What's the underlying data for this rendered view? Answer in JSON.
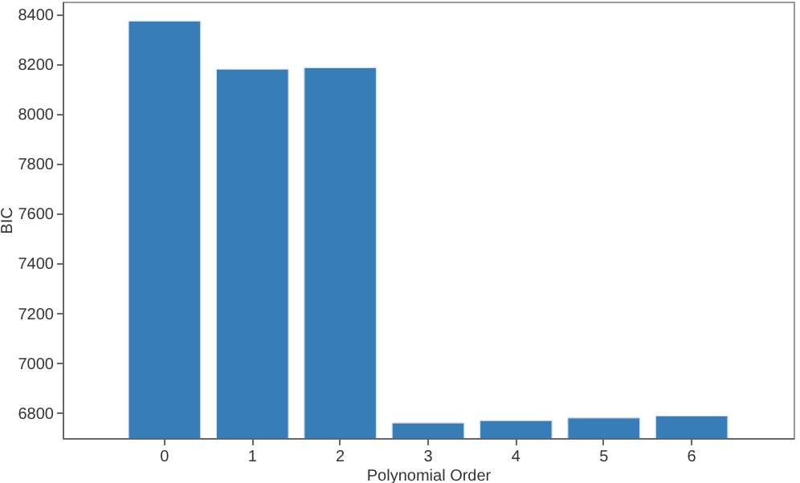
{
  "chart_data": {
    "type": "bar",
    "xlabel": "Polynomial Order",
    "ylabel": "BIC",
    "categories": [
      "0",
      "1",
      "2",
      "3",
      "4",
      "5",
      "6"
    ],
    "values": [
      8372,
      8179,
      8185,
      6761,
      6770,
      6781,
      6789
    ],
    "color": "#377eb8",
    "ylim": [
      6700,
      8450
    ],
    "yticks": [
      6800,
      7000,
      7200,
      7400,
      7600,
      7800,
      8000,
      8200,
      8400
    ],
    "grid": false
  }
}
